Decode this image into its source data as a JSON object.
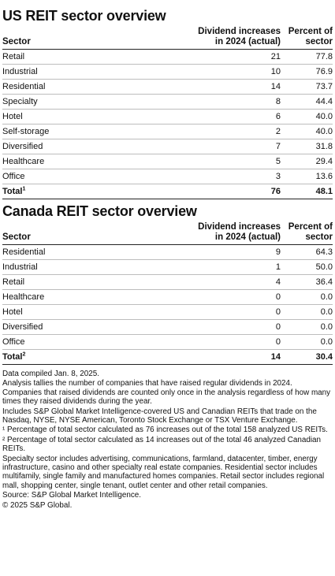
{
  "us": {
    "title": "US REIT sector overview",
    "headers": {
      "sector": "Sector",
      "dividend_line1": "Dividend increases",
      "dividend_line2": "in 2024 (actual)",
      "percent_line1": "Percent of",
      "percent_line2": "sector"
    },
    "rows": [
      {
        "sector": "Retail",
        "increases": "21",
        "percent": "77.8"
      },
      {
        "sector": "Industrial",
        "increases": "10",
        "percent": "76.9"
      },
      {
        "sector": "Residential",
        "increases": "14",
        "percent": "73.7"
      },
      {
        "sector": "Specialty",
        "increases": "8",
        "percent": "44.4"
      },
      {
        "sector": "Hotel",
        "increases": "6",
        "percent": "40.0"
      },
      {
        "sector": "Self-storage",
        "increases": "2",
        "percent": "40.0"
      },
      {
        "sector": "Diversified",
        "increases": "7",
        "percent": "31.8"
      },
      {
        "sector": "Healthcare",
        "increases": "5",
        "percent": "29.4"
      },
      {
        "sector": "Office",
        "increases": "3",
        "percent": "13.6"
      }
    ],
    "total": {
      "label": "Total",
      "mark": "1",
      "increases": "76",
      "percent": "48.1"
    }
  },
  "canada": {
    "title": "Canada REIT sector overview",
    "headers": {
      "sector": "Sector",
      "dividend_line1": "Dividend increases",
      "dividend_line2": "in 2024 (actual)",
      "percent_line1": "Percent of",
      "percent_line2": "sector"
    },
    "rows": [
      {
        "sector": "Residential",
        "increases": "9",
        "percent": "64.3"
      },
      {
        "sector": "Industrial",
        "increases": "1",
        "percent": "50.0"
      },
      {
        "sector": "Retail",
        "increases": "4",
        "percent": "36.4"
      },
      {
        "sector": "Healthcare",
        "increases": "0",
        "percent": "0.0"
      },
      {
        "sector": "Hotel",
        "increases": "0",
        "percent": "0.0"
      },
      {
        "sector": "Diversified",
        "increases": "0",
        "percent": "0.0"
      },
      {
        "sector": "Office",
        "increases": "0",
        "percent": "0.0"
      }
    ],
    "total": {
      "label": "Total",
      "mark": "2",
      "increases": "14",
      "percent": "30.4"
    }
  },
  "notes": [
    "Data compiled Jan. 8, 2025.",
    "Analysis tallies the number of companies that have raised regular dividends in 2024. Companies that raised dividends are counted only once in the analysis regardless of how many times they raised dividends during the year.",
    "Includes S&P Global Market Intelligence-covered US and Canadian REITs that trade on the Nasdaq, NYSE, NYSE American, Toronto Stock Exchange or TSX Venture Exchange.",
    "¹ Percentage of total sector calculated as 76 increases out of the total 158 analyzed US REITs.",
    "² Percentage of total sector calculated as 14 increases out of the total 46 analyzed Canadian REITs.",
    "Specialty sector includes advertising, communications, farmland, datacenter, timber, energy infrastructure, casino and other specialty real estate companies. Residential sector includes multifamily, single family and manufactured homes companies. Retail sector includes regional mall, shopping center, single tenant, outlet center and other retail companies.",
    "Source: S&P Global Market Intelligence.",
    "© 2025 S&P Global."
  ]
}
